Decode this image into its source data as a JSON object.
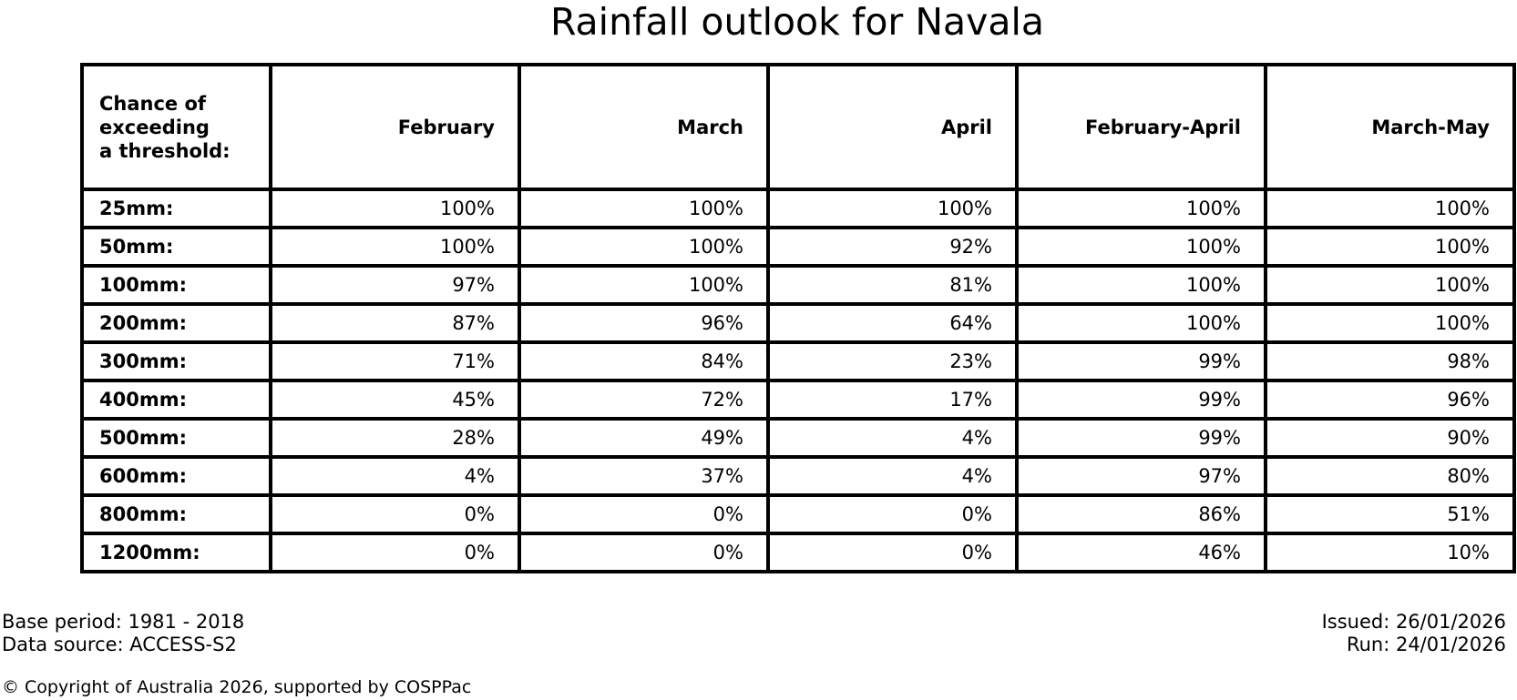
{
  "title": "Rainfall outlook for Navala",
  "table": {
    "corner_header": "Chance of\nexceeding\na threshold:",
    "columns": [
      "February",
      "March",
      "April",
      "February-April",
      "March-May"
    ],
    "rows": [
      {
        "label": "25mm:",
        "values": [
          "100%",
          "100%",
          "100%",
          "100%",
          "100%"
        ]
      },
      {
        "label": "50mm:",
        "values": [
          "100%",
          "100%",
          "92%",
          "100%",
          "100%"
        ]
      },
      {
        "label": "100mm:",
        "values": [
          "97%",
          "100%",
          "81%",
          "100%",
          "100%"
        ]
      },
      {
        "label": "200mm:",
        "values": [
          "87%",
          "96%",
          "64%",
          "100%",
          "100%"
        ]
      },
      {
        "label": "300mm:",
        "values": [
          "71%",
          "84%",
          "23%",
          "99%",
          "98%"
        ]
      },
      {
        "label": "400mm:",
        "values": [
          "45%",
          "72%",
          "17%",
          "99%",
          "96%"
        ]
      },
      {
        "label": "500mm:",
        "values": [
          "28%",
          "49%",
          "4%",
          "99%",
          "90%"
        ]
      },
      {
        "label": "600mm:",
        "values": [
          "4%",
          "37%",
          "4%",
          "97%",
          "80%"
        ]
      },
      {
        "label": "800mm:",
        "values": [
          "0%",
          "0%",
          "0%",
          "86%",
          "51%"
        ]
      },
      {
        "label": "1200mm:",
        "values": [
          "0%",
          "0%",
          "0%",
          "46%",
          "10%"
        ]
      }
    ]
  },
  "footer": {
    "base_period": "Base period: 1981 - 2018",
    "data_source": "Data source: ACCESS-S2",
    "issued": "Issued: 26/01/2026",
    "run": "Run: 24/01/2026",
    "copyright": "© Copyright of Australia 2026, supported by COSPPac"
  },
  "colors": {
    "text": "#000000",
    "background": "#ffffff",
    "table_border": "#000000"
  },
  "chart_data": {
    "type": "table",
    "title": "Rainfall outlook for Navala",
    "row_header": "Chance of exceeding a threshold:",
    "columns": [
      "February",
      "March",
      "April",
      "February-April",
      "March-May"
    ],
    "thresholds_mm": [
      25,
      50,
      100,
      200,
      300,
      400,
      500,
      600,
      800,
      1200
    ],
    "series": [
      {
        "name": "February",
        "values": [
          100,
          100,
          97,
          87,
          71,
          45,
          28,
          4,
          0,
          0
        ]
      },
      {
        "name": "March",
        "values": [
          100,
          100,
          100,
          96,
          84,
          72,
          49,
          37,
          0,
          0
        ]
      },
      {
        "name": "April",
        "values": [
          100,
          92,
          81,
          64,
          23,
          17,
          4,
          4,
          0,
          0
        ]
      },
      {
        "name": "February-April",
        "values": [
          100,
          100,
          100,
          100,
          99,
          99,
          99,
          97,
          86,
          46
        ]
      },
      {
        "name": "March-May",
        "values": [
          100,
          100,
          100,
          100,
          98,
          96,
          90,
          80,
          51,
          10
        ]
      }
    ],
    "units": "percent chance of exceeding threshold"
  }
}
